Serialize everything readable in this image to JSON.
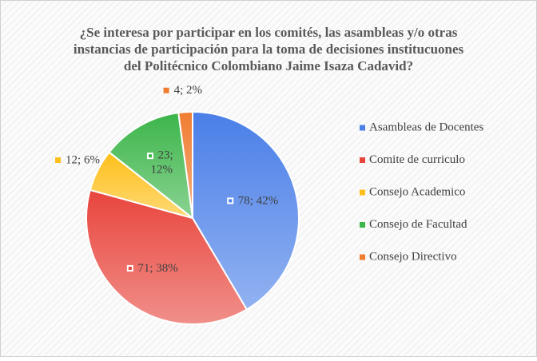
{
  "chart_data": {
    "type": "pie",
    "title": [
      "¿Se interesa por participar en los comités, las asambleas y/o otras",
      "instancias de participación para la toma de decisiones institucuones",
      "del Politécnico Colombiano Jaime Isaza Cadavid?"
    ],
    "categories": [
      "Asambleas de Docentes",
      "Comite de curriculo",
      "Consejo Academico",
      "Consejo de Facultad",
      "Consejo Directivo"
    ],
    "values": [
      78,
      71,
      12,
      23,
      4
    ],
    "value_labels": [
      "78; 42%",
      "71; 38%",
      "12; 6%",
      "23; 12%",
      "4; 2%"
    ],
    "colors": [
      "#4a7fe8",
      "#e8453c",
      "#fdbf1a",
      "#3cb54a",
      "#f07c30"
    ],
    "legend": "right"
  }
}
